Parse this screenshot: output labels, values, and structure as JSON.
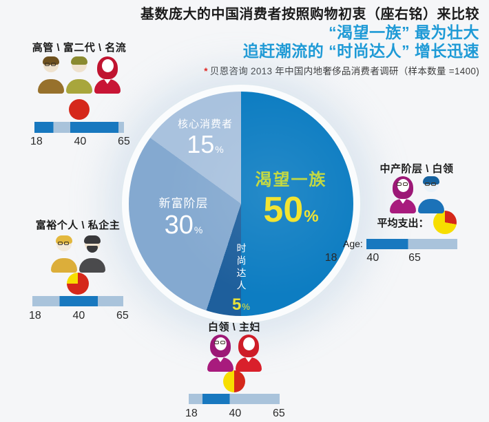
{
  "colors": {
    "accent_blue": "#1E9AD6",
    "bar_dark": "#1878BF",
    "bar_light": "#A9C3DB",
    "red": "#D5281B",
    "yellow": "#F7DE00"
  },
  "header": {
    "title": "基数庞大的中国消费者按照购物初衷（座右铭）来比较",
    "subtitle1": "“渴望一族” 最为壮大",
    "subtitle2": "追赶潮流的 “时尚达人” 增长迅速",
    "note_mark": "*",
    "note": "贝恩咨询 2013 年中国内地奢侈品消费者调研（样本数量 =1400)"
  },
  "chart_data": {
    "type": "pie",
    "title": "基数庞大的中国消费者按照购物初衷（座右铭）来比较",
    "start_angle_deg": 0,
    "direction": "clockwise",
    "percent": "%",
    "segments": [
      {
        "label": "渴望一族",
        "value": 50,
        "color": "#0D7DC2",
        "label_color": "#C3D943",
        "value_color": "#F2E432"
      },
      {
        "label": "时尚达人",
        "value": 5,
        "color": "#1E5F9C",
        "label_color": "#FFFFFF",
        "value_color": "#E8E23A"
      },
      {
        "label": "新富阶层",
        "value": 30,
        "color": "#84A9D0",
        "label_color": "#FFFFFF",
        "value_color": "#FFFFFF"
      },
      {
        "label": "核心消费者",
        "value": 15,
        "color": "#A9C2DE",
        "label_color": "#FFFFFF",
        "value_color": "#FFFFFF"
      }
    ]
  },
  "groups": [
    {
      "id": "executives",
      "label": "高管 \\ 富二代 \\ 名流",
      "icons": [
        {
          "name": "man-glasses-icon",
          "style": "male",
          "body": "#97712C",
          "hair": "#6E511F",
          "face": "#EFE2CE",
          "glasses": true
        },
        {
          "name": "man-icon",
          "style": "male",
          "body": "#A8A63C",
          "hair": "#8A8A30",
          "face": "#EFE2CE"
        },
        {
          "name": "woman-icon",
          "style": "female",
          "body": "#C81535",
          "hair": "#C01430",
          "face": "#FFFFFF"
        }
      ],
      "spend_pie": {
        "slices": [
          {
            "color": "red",
            "from": 0,
            "to": 360
          }
        ]
      },
      "age_bar": {
        "segments": [
          {
            "shade": "dark",
            "from": 0,
            "to": 21
          },
          {
            "shade": "light",
            "from": 21,
            "to": 40
          },
          {
            "shade": "dark",
            "from": 40,
            "to": 94
          },
          {
            "shade": "light",
            "from": 94,
            "to": 100
          }
        ]
      },
      "ticks": [
        "18",
        "40",
        "65"
      ]
    },
    {
      "id": "wealthy",
      "label": "富裕个人 \\ 私企主",
      "icons": [
        {
          "name": "man-glasses-icon",
          "style": "male",
          "body": "#DCAE3A",
          "hair": "#E3B83E",
          "face": "#F3E9D8",
          "glasses": true
        },
        {
          "name": "man-beard-icon",
          "style": "male",
          "body": "#4A4A4C",
          "hair": "#39393B",
          "face": "#EFE2CE",
          "beard": true
        }
      ],
      "spend_pie": {
        "slices": [
          {
            "color": "red",
            "from": 0,
            "to": 270
          },
          {
            "color": "yellow",
            "from": 270,
            "to": 360
          }
        ]
      },
      "age_bar": {
        "segments": [
          {
            "shade": "light",
            "from": 0,
            "to": 30
          },
          {
            "shade": "dark",
            "from": 30,
            "to": 72
          },
          {
            "shade": "light",
            "from": 72,
            "to": 100
          }
        ]
      },
      "ticks": [
        "18",
        "40",
        "65"
      ]
    },
    {
      "id": "whitecollar-housewife",
      "label": "白领 \\ 主妇",
      "icons": [
        {
          "name": "woman-glasses-icon",
          "style": "female",
          "body": "#A81B7D",
          "hair": "#9C1876",
          "face": "#FFFFFF",
          "glasses": true
        },
        {
          "name": "woman-icon",
          "style": "female",
          "body": "#D9202B",
          "hair": "#CE1D28",
          "face": "#FFFFFF"
        }
      ],
      "spend_pie": {
        "slices": [
          {
            "color": "red",
            "from": 0,
            "to": 180
          },
          {
            "color": "yellow",
            "from": 180,
            "to": 360
          }
        ]
      },
      "age_bar": {
        "segments": [
          {
            "shade": "light",
            "from": 0,
            "to": 15
          },
          {
            "shade": "dark",
            "from": 15,
            "to": 45
          },
          {
            "shade": "light",
            "from": 45,
            "to": 100
          }
        ]
      },
      "ticks": [
        "18",
        "40",
        "65"
      ]
    },
    {
      "id": "middleclass",
      "label": "中产阶层 \\ 白领",
      "spend_label": "平均支出：",
      "age_label": "Age:",
      "icons": [
        {
          "name": "woman-glasses-icon",
          "style": "female",
          "body": "#A81B7D",
          "hair": "#9C1876",
          "face": "#FFFFFF",
          "glasses": true
        },
        {
          "name": "man-glasses-icon",
          "style": "male",
          "body": "#1B72B8",
          "hair": "#15619E",
          "face": "#EAF2F8",
          "glasses": true
        }
      ],
      "spend_pie": {
        "slices": [
          {
            "color": "red",
            "from": 0,
            "to": 100
          },
          {
            "color": "yellow",
            "from": 100,
            "to": 360
          }
        ]
      },
      "age_bar": {
        "segments": [
          {
            "shade": "dark",
            "from": 0,
            "to": 46
          },
          {
            "shade": "light",
            "from": 46,
            "to": 100
          }
        ]
      },
      "ticks": [
        "18",
        "40",
        "65"
      ]
    }
  ]
}
